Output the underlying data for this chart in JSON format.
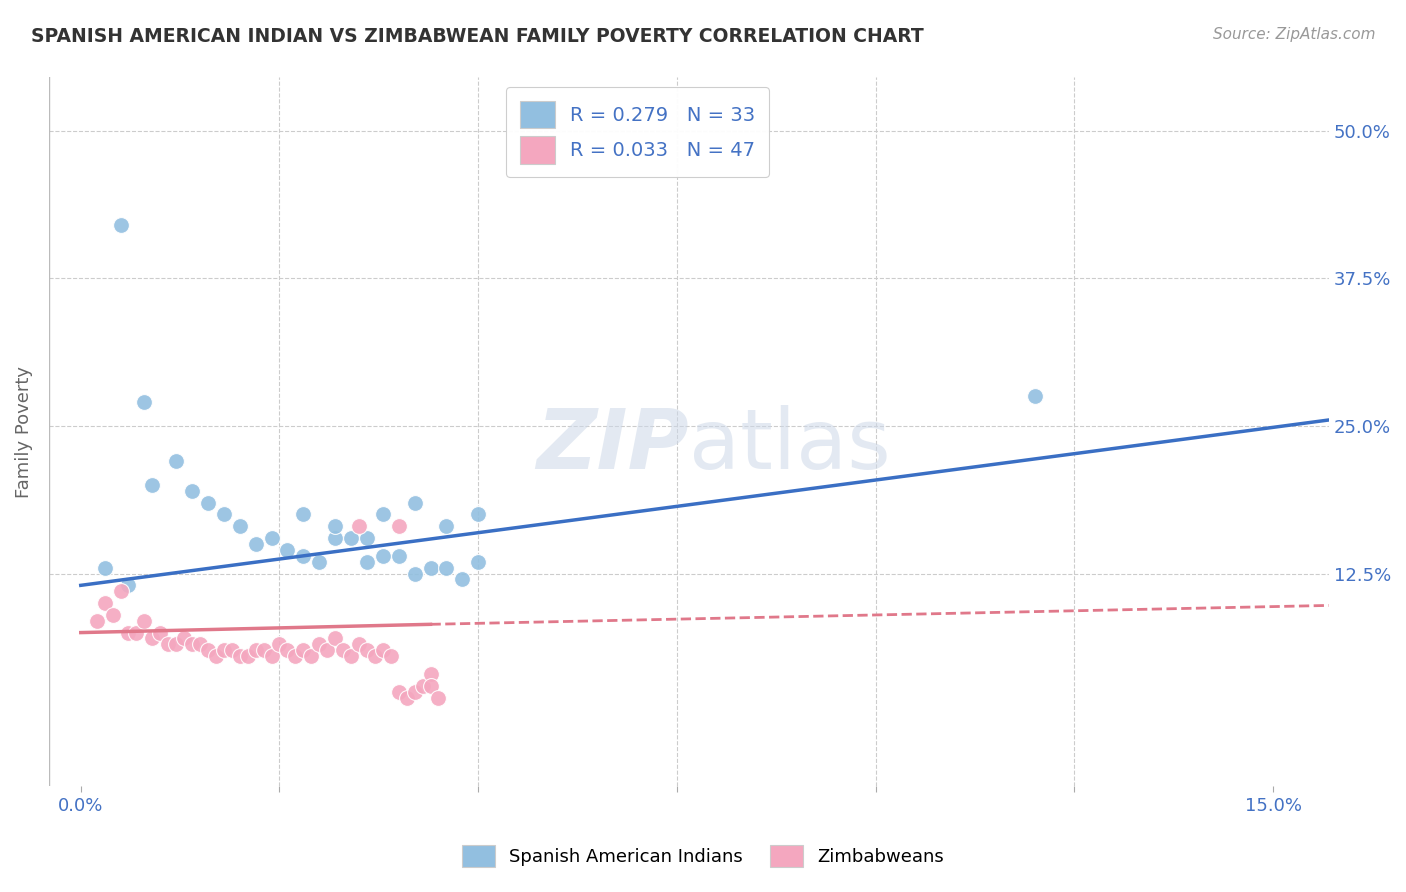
{
  "title": "SPANISH AMERICAN INDIAN VS ZIMBABWEAN FAMILY POVERTY CORRELATION CHART",
  "source": "Source: ZipAtlas.com",
  "ylabel": "Family Poverty",
  "x_ticks": [
    0.0,
    0.025,
    0.05,
    0.075,
    0.1,
    0.125,
    0.15
  ],
  "y_ticks": [
    0.0,
    0.125,
    0.25,
    0.375,
    0.5
  ],
  "xlim": [
    -0.004,
    0.157
  ],
  "ylim": [
    -0.055,
    0.545
  ],
  "blue_color": "#92bfe0",
  "pink_color": "#f4a7bf",
  "blue_line_color": "#3a6fc4",
  "pink_line_color": "#e0788a",
  "background": "#ffffff",
  "blue_scatter_x": [
    0.005,
    0.008,
    0.009,
    0.012,
    0.014,
    0.016,
    0.018,
    0.02,
    0.022,
    0.024,
    0.026,
    0.028,
    0.03,
    0.032,
    0.034,
    0.036,
    0.038,
    0.04,
    0.042,
    0.044,
    0.046,
    0.048,
    0.05,
    0.028,
    0.032,
    0.036,
    0.038,
    0.042,
    0.046,
    0.05,
    0.12,
    0.003,
    0.006
  ],
  "blue_scatter_y": [
    0.42,
    0.27,
    0.2,
    0.22,
    0.195,
    0.185,
    0.175,
    0.165,
    0.15,
    0.155,
    0.145,
    0.14,
    0.135,
    0.155,
    0.155,
    0.135,
    0.14,
    0.14,
    0.125,
    0.13,
    0.13,
    0.12,
    0.135,
    0.175,
    0.165,
    0.155,
    0.175,
    0.185,
    0.165,
    0.175,
    0.275,
    0.13,
    0.115
  ],
  "pink_scatter_x": [
    0.002,
    0.003,
    0.004,
    0.005,
    0.006,
    0.007,
    0.008,
    0.009,
    0.01,
    0.011,
    0.012,
    0.013,
    0.014,
    0.015,
    0.016,
    0.017,
    0.018,
    0.019,
    0.02,
    0.021,
    0.022,
    0.023,
    0.024,
    0.025,
    0.026,
    0.027,
    0.028,
    0.029,
    0.03,
    0.031,
    0.032,
    0.033,
    0.034,
    0.035,
    0.036,
    0.037,
    0.038,
    0.039,
    0.04,
    0.041,
    0.042,
    0.043,
    0.044,
    0.044,
    0.045,
    0.035,
    0.04
  ],
  "pink_scatter_y": [
    0.085,
    0.1,
    0.09,
    0.11,
    0.075,
    0.075,
    0.085,
    0.07,
    0.075,
    0.065,
    0.065,
    0.07,
    0.065,
    0.065,
    0.06,
    0.055,
    0.06,
    0.06,
    0.055,
    0.055,
    0.06,
    0.06,
    0.055,
    0.065,
    0.06,
    0.055,
    0.06,
    0.055,
    0.065,
    0.06,
    0.07,
    0.06,
    0.055,
    0.065,
    0.06,
    0.055,
    0.06,
    0.055,
    0.025,
    0.02,
    0.025,
    0.03,
    0.04,
    0.03,
    0.02,
    0.165,
    0.165
  ],
  "blue_line_x0": 0.0,
  "blue_line_y0": 0.115,
  "blue_line_x1": 0.157,
  "blue_line_y1": 0.255,
  "pink_line_solid_x0": 0.0,
  "pink_line_solid_y0": 0.075,
  "pink_line_solid_x1": 0.044,
  "pink_line_solid_y1": 0.082,
  "pink_line_dash_x0": 0.044,
  "pink_line_dash_y0": 0.082,
  "pink_line_dash_x1": 0.157,
  "pink_line_dash_y1": 0.098,
  "legend_blue_R": "R = 0.279",
  "legend_blue_N": "N = 33",
  "legend_pink_R": "R = 0.033",
  "legend_pink_N": "N = 47",
  "legend_label_blue": "Spanish American Indians",
  "legend_label_pink": "Zimbabweans"
}
